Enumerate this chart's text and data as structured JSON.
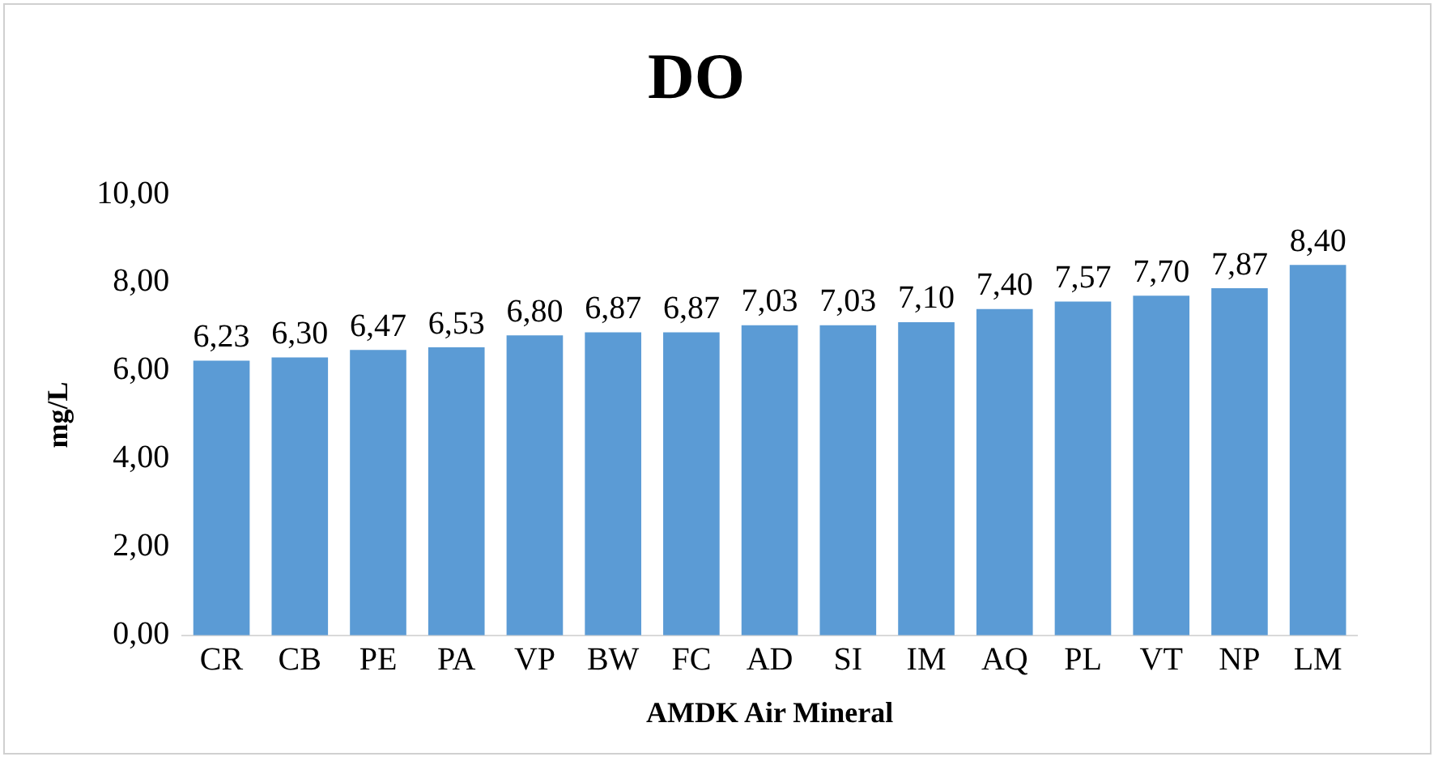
{
  "chart_data": {
    "type": "bar",
    "title": "DO",
    "xlabel": "AMDK Air Mineral",
    "ylabel": "mg/L",
    "categories": [
      "CR",
      "CB",
      "PE",
      "PA",
      "VP",
      "BW",
      "FC",
      "AD",
      "SI",
      "IM",
      "AQ",
      "PL",
      "VT",
      "NP",
      "LM"
    ],
    "values": [
      6.23,
      6.3,
      6.47,
      6.53,
      6.8,
      6.87,
      6.87,
      7.03,
      7.03,
      7.1,
      7.4,
      7.57,
      7.7,
      7.87,
      8.4
    ],
    "value_labels": [
      "6,23",
      "6,30",
      "6,47",
      "6,53",
      "6,80",
      "6,87",
      "6,87",
      "7,03",
      "7,03",
      "7,10",
      "7,40",
      "7,57",
      "7,70",
      "7,87",
      "8,40"
    ],
    "color": "#5b9bd5",
    "ylim": [
      0,
      10
    ],
    "yticks": [
      {
        "value": 0,
        "label": "0,00"
      },
      {
        "value": 2,
        "label": "2,00"
      },
      {
        "value": 4,
        "label": "4,00"
      },
      {
        "value": 6,
        "label": "6,00"
      },
      {
        "value": 8,
        "label": "8,00"
      },
      {
        "value": 10,
        "label": "10,00"
      }
    ],
    "grid": false,
    "legend": false
  }
}
